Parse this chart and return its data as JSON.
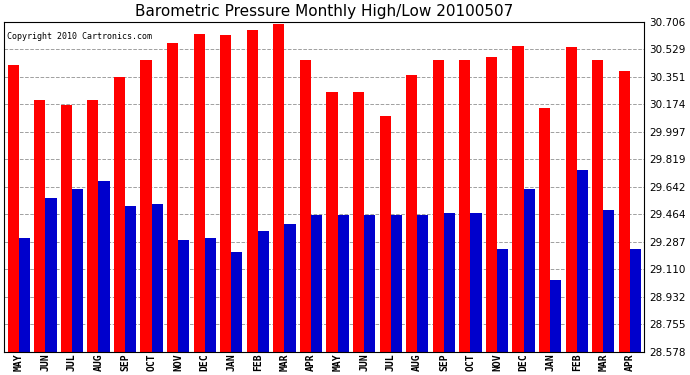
{
  "title": "Barometric Pressure Monthly High/Low 20100507",
  "copyright": "Copyright 2010 Cartronics.com",
  "months": [
    "MAY",
    "JUN",
    "JUL",
    "AUG",
    "SEP",
    "OCT",
    "NOV",
    "DEC",
    "JAN",
    "FEB",
    "MAR",
    "APR",
    "MAY",
    "JUN",
    "JUL",
    "AUG",
    "SEP",
    "OCT",
    "NOV",
    "DEC",
    "JAN",
    "FEB",
    "MAR",
    "APR"
  ],
  "highs": [
    30.43,
    30.2,
    30.17,
    30.2,
    30.35,
    30.46,
    30.57,
    30.63,
    30.62,
    30.65,
    30.69,
    30.46,
    30.25,
    30.25,
    30.1,
    30.36,
    30.46,
    30.46,
    30.48,
    30.55,
    30.15,
    30.54,
    30.46,
    30.39
  ],
  "lows": [
    29.31,
    29.57,
    29.63,
    29.68,
    29.52,
    29.53,
    29.3,
    29.31,
    29.22,
    29.36,
    29.4,
    29.46,
    29.46,
    29.46,
    29.46,
    29.46,
    29.47,
    29.47,
    29.24,
    29.63,
    29.04,
    29.75,
    29.49,
    29.24
  ],
  "high_color": "#ff0000",
  "low_color": "#0000cc",
  "background_color": "#ffffff",
  "plot_bg_color": "#ffffff",
  "grid_color": "#888888",
  "title_fontsize": 11,
  "ymin": 28.578,
  "ymax": 30.706,
  "yticks": [
    28.578,
    28.755,
    28.932,
    29.11,
    29.287,
    29.464,
    29.642,
    29.819,
    29.997,
    30.174,
    30.351,
    30.529,
    30.706
  ]
}
